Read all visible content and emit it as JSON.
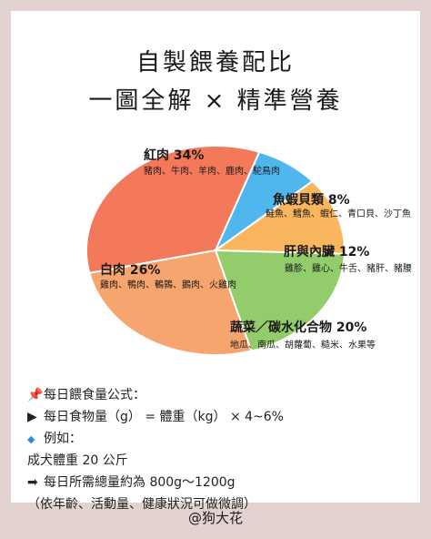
{
  "title_line1": "自製餵養配比",
  "title_line2": "一圖全解 × 精準營養",
  "chart_data": {
    "type": "pie",
    "slices": [
      {
        "label": "紅肉 34%",
        "value": 34,
        "items": "豬肉、牛肉、羊肉、鹿肉、駝鳥肉",
        "color": "#f4795b"
      },
      {
        "label": "魚蝦貝類 8%",
        "value": 8,
        "items": "鮭魚、鱈魚、蝦仁、青口貝、沙丁魚",
        "color": "#4fb7ee"
      },
      {
        "label": "肝與內臟 12%",
        "value": 12,
        "items": "雞胗、雞心、牛舌、豬肝、豬腰",
        "color": "#f9b65f"
      },
      {
        "label": "蔬菜／碳水化合物 20%",
        "value": 20,
        "items": "地瓜、南瓜、胡蘿蔔、糙米、水果等",
        "color": "#93cc6a"
      },
      {
        "label": "白肉 26%",
        "value": 26,
        "items": "雞肉、鴨肉、鵪鶉、鵝肉、火雞肉",
        "color": "#f7a56e"
      }
    ]
  },
  "notes": {
    "formula_title": "每日餵食量公式：",
    "formula": "每日食物量（g） = 體重（kg） × 4~6%",
    "example_title": "例如：",
    "weight": "成犬體重 20 公斤",
    "total": "每日所需總量約為 800g～1200g",
    "caveat": "（依年齡、活動量、健康狀況可做微調）"
  },
  "credit": "@狗大花"
}
